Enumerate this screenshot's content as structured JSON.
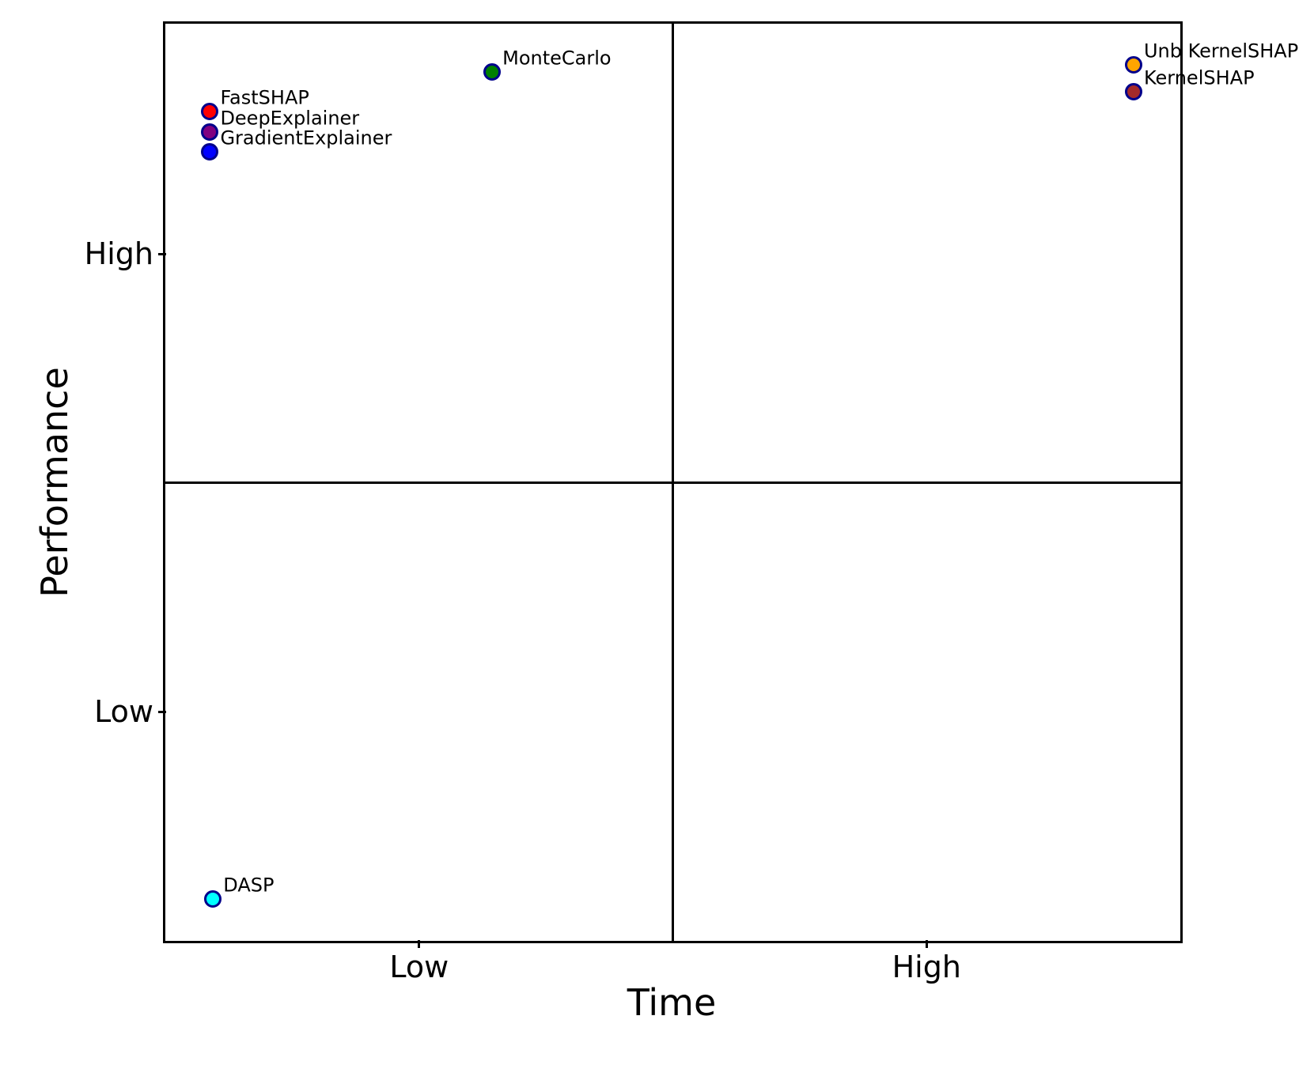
{
  "chart_data": {
    "type": "scatter",
    "title": "",
    "xlabel": "Time",
    "ylabel": "Performance",
    "background_color": "#ffffff",
    "axis_color": "#000000",
    "marker_edge_color": "#00008b",
    "grid": false,
    "legend": false,
    "x_ticks": [
      {
        "label": "Low",
        "pos_pct": 25.0
      },
      {
        "label": "High",
        "pos_pct": 75.0
      }
    ],
    "y_ticks": [
      {
        "label": "High",
        "pos_pct": 25.1
      },
      {
        "label": "Low",
        "pos_pct": 75.0
      }
    ],
    "quadrant_lines": {
      "vertical_pos_pct": 50,
      "horizontal_pos_pct": 50
    },
    "points": [
      {
        "label": "MonteCarlo",
        "x_pct": 32.2,
        "y_pct": 5.3,
        "time": "Low",
        "performance": "High",
        "color": "#008000"
      },
      {
        "label": "FastSHAP",
        "x_pct": 4.4,
        "y_pct": 9.6,
        "time": "Low",
        "performance": "High",
        "color": "#ff0000"
      },
      {
        "label": "DeepExplainer",
        "x_pct": 4.4,
        "y_pct": 11.8,
        "time": "Low",
        "performance": "High",
        "color": "#800080"
      },
      {
        "label": "GradientExplainer",
        "x_pct": 4.4,
        "y_pct": 14.0,
        "time": "Low",
        "performance": "High",
        "color": "#0000ff"
      },
      {
        "label": "Unb KernelSHAP",
        "x_pct": 95.4,
        "y_pct": 4.5,
        "time": "High",
        "performance": "High",
        "color": "#ffa500"
      },
      {
        "label": "KernelSHAP",
        "x_pct": 95.4,
        "y_pct": 7.4,
        "time": "High",
        "performance": "High",
        "color": "#a52a2a"
      },
      {
        "label": "DASP",
        "x_pct": 4.7,
        "y_pct": 95.4,
        "time": "Low",
        "performance": "Low",
        "color": "#00ffff"
      }
    ]
  }
}
